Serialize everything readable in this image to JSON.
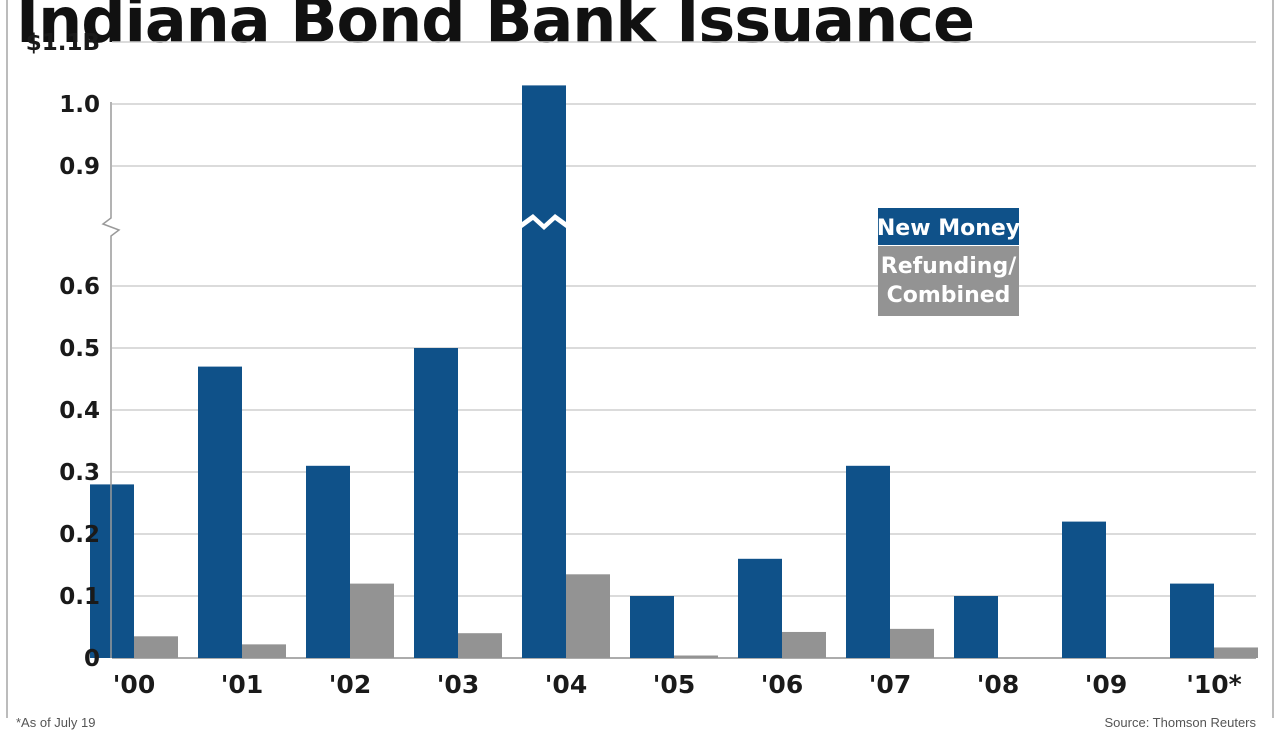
{
  "chart_data": {
    "type": "bar",
    "title": "Indiana Bond Bank Issuance",
    "categories": [
      "'00",
      "'01",
      "'02",
      "'03",
      "'04",
      "'05",
      "'06",
      "'07",
      "'08",
      "'09",
      "'10*"
    ],
    "series": [
      {
        "name": "New Money",
        "color": "#0f5189",
        "values": [
          0.28,
          0.47,
          0.31,
          0.5,
          1.03,
          0.1,
          0.16,
          0.31,
          0.1,
          0.22,
          0.12
        ]
      },
      {
        "name": "Refunding/ Combined",
        "color": "#939393",
        "values": [
          0.035,
          0.022,
          0.12,
          0.04,
          0.135,
          0.004,
          0.042,
          0.047,
          0,
          0,
          0.017
        ]
      }
    ],
    "yticks": [
      "$1.1B",
      "1.0",
      "0.9",
      "0.6",
      "0.5",
      "0.4",
      "0.3",
      "0.2",
      "0.1",
      "0"
    ],
    "ytick_values": [
      1.1,
      1.0,
      0.9,
      0.6,
      0.5,
      0.4,
      0.3,
      0.2,
      0.1,
      0
    ],
    "axis_break": {
      "from": 0.6,
      "to": 0.9
    },
    "ylim": [
      0,
      1.1
    ],
    "grid": true,
    "legend_position": "right",
    "legend_lines": [
      [
        "New Money"
      ],
      [
        "Refunding/",
        "Combined"
      ]
    ]
  },
  "footnote": "*As of July 19",
  "source": "Source: Thomson Reuters"
}
